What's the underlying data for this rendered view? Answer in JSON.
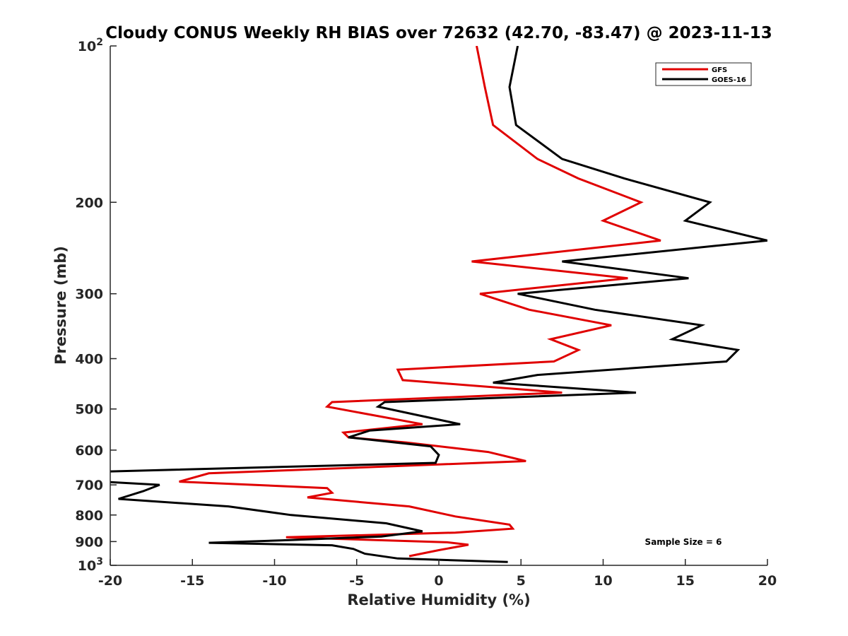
{
  "chart_data": {
    "type": "line",
    "title": "Cloudy CONUS Weekly RH BIAS over 72632 (42.70, -83.47) @ 2023-11-13",
    "xlabel": "Relative Humidity (%)",
    "ylabel": "Pressure (mb)",
    "xlim": [
      -20,
      20
    ],
    "ylim": [
      1000,
      100
    ],
    "y_scale": "log",
    "y_direction": "reverse",
    "grid": false,
    "legend_position": "top-right",
    "x_ticks": [
      -20,
      -15,
      -10,
      -5,
      0,
      5,
      10,
      15,
      20
    ],
    "y_ticks": [
      {
        "value": 100,
        "label": "10",
        "sup": "2"
      },
      {
        "value": 200,
        "label": "200",
        "sup": ""
      },
      {
        "value": 300,
        "label": "300",
        "sup": ""
      },
      {
        "value": 400,
        "label": "400",
        "sup": ""
      },
      {
        "value": 500,
        "label": "500",
        "sup": ""
      },
      {
        "value": 600,
        "label": "600",
        "sup": ""
      },
      {
        "value": 700,
        "label": "700",
        "sup": ""
      },
      {
        "value": 800,
        "label": "800",
        "sup": ""
      },
      {
        "value": 900,
        "label": "900",
        "sup": ""
      },
      {
        "value": 1000,
        "label": "10",
        "sup": "3"
      }
    ],
    "annotation": "Sample Size = 6",
    "series": [
      {
        "name": "GFS",
        "color": "#e00000",
        "points": [
          [
            2.3,
            100
          ],
          [
            2.8,
            120
          ],
          [
            3.3,
            142
          ],
          [
            6.0,
            165
          ],
          [
            8.5,
            180
          ],
          [
            12.3,
            200
          ],
          [
            10.0,
            217
          ],
          [
            13.5,
            237
          ],
          [
            2.0,
            260
          ],
          [
            11.5,
            280
          ],
          [
            2.5,
            300
          ],
          [
            5.5,
            322
          ],
          [
            10.5,
            345
          ],
          [
            6.8,
            367
          ],
          [
            8.5,
            385
          ],
          [
            7.0,
            405
          ],
          [
            -2.5,
            420
          ],
          [
            -2.2,
            440
          ],
          [
            7.5,
            465
          ],
          [
            -6.5,
            485
          ],
          [
            -6.8,
            495
          ],
          [
            -1.0,
            535
          ],
          [
            -5.8,
            555
          ],
          [
            -5.5,
            567
          ],
          [
            -2.0,
            580
          ],
          [
            3.0,
            605
          ],
          [
            5.3,
            630
          ],
          [
            -14.0,
            665
          ],
          [
            -15.8,
            690
          ],
          [
            -6.8,
            710
          ],
          [
            -6.5,
            725
          ],
          [
            -8.0,
            740
          ],
          [
            -1.8,
            770
          ],
          [
            1.0,
            805
          ],
          [
            4.3,
            835
          ],
          [
            4.5,
            850
          ],
          [
            1.0,
            865
          ],
          [
            -9.3,
            883
          ],
          [
            0.5,
            903
          ],
          [
            1.8,
            913
          ],
          [
            0.0,
            935
          ],
          [
            -1.8,
            960
          ]
        ]
      },
      {
        "name": "GOES-16",
        "color": "#000000",
        "points": [
          [
            4.8,
            100
          ],
          [
            4.3,
            120
          ],
          [
            4.7,
            142
          ],
          [
            7.5,
            165
          ],
          [
            11.3,
            180
          ],
          [
            16.5,
            200
          ],
          [
            15.0,
            217
          ],
          [
            20.0,
            237
          ],
          [
            7.5,
            260
          ],
          [
            15.2,
            280
          ],
          [
            4.8,
            300
          ],
          [
            9.5,
            322
          ],
          [
            16.0,
            345
          ],
          [
            14.2,
            367
          ],
          [
            18.2,
            385
          ],
          [
            17.5,
            405
          ],
          [
            6.0,
            430
          ],
          [
            3.3,
            445
          ],
          [
            12.0,
            465
          ],
          [
            -3.3,
            485
          ],
          [
            -3.7,
            495
          ],
          [
            1.3,
            535
          ],
          [
            -4.2,
            550
          ],
          [
            -5.5,
            567
          ],
          [
            -0.5,
            590
          ],
          [
            0.0,
            613
          ],
          [
            -0.2,
            635
          ],
          [
            -20.5,
            660
          ],
          [
            -20.5,
            690
          ],
          [
            -17.0,
            700
          ],
          [
            -18.0,
            720
          ],
          [
            -19.5,
            745
          ],
          [
            -12.8,
            770
          ],
          [
            -9.0,
            800
          ],
          [
            -3.2,
            830
          ],
          [
            -1.0,
            860
          ],
          [
            -3.5,
            880
          ],
          [
            -9.5,
            895
          ],
          [
            -14.0,
            905
          ],
          [
            -6.5,
            915
          ],
          [
            -5.2,
            930
          ],
          [
            -4.5,
            950
          ],
          [
            -2.5,
            970
          ],
          [
            4.2,
            985
          ]
        ]
      }
    ]
  }
}
